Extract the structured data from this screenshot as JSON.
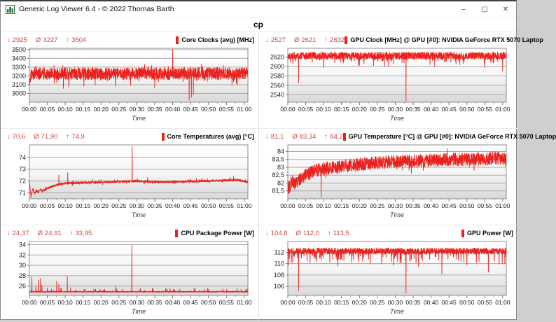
{
  "window": {
    "title": "Generic Log Viewer 6.4 - © 2022 Thomas Barth",
    "controls": {
      "minimize": "–",
      "maximize": "▢",
      "close": "✕"
    }
  },
  "page_title": "cp",
  "symbols": {
    "min": "↓",
    "avg": "Ø",
    "max": "↑"
  },
  "colors": {
    "line": "#e8231f",
    "legend_marker": "#e8231f",
    "stats_text": "#c84a46"
  },
  "time_axis": {
    "label": "Time",
    "ticks": [
      "00:00",
      "00:05",
      "00:10",
      "00:15",
      "00:20",
      "00:25",
      "00:30",
      "00:35",
      "00:40",
      "00:45",
      "00:50",
      "00:55",
      "01:00"
    ]
  },
  "chart_data": [
    {
      "type": "line",
      "title": "Core Clocks (avg) [MHz]",
      "stats": {
        "min": "2925",
        "avg": "3227",
        "max": "3504"
      },
      "ylim": [
        2900,
        3515
      ],
      "y_tick_values": [
        3500,
        3400,
        3300,
        3200,
        3100,
        3000
      ],
      "y_tick_labels": [
        "3500",
        "3400",
        "3300",
        "3200",
        "3100",
        "3000"
      ],
      "series": {
        "seed": 11,
        "profile": [
          [
            0,
            3150
          ],
          [
            0.6,
            3225
          ],
          [
            61,
            3225
          ]
        ],
        "noise_amp": 70,
        "up_prob": 0.05,
        "up_amp": 55,
        "down_prob": 0.03,
        "down_amp": 85,
        "clip_max": 3340,
        "clip_min": 3060,
        "spikes": [
          [
            9.5,
            3058
          ],
          [
            11,
            3075
          ],
          [
            24,
            3082
          ],
          [
            28.3,
            3090
          ],
          [
            35,
            3062
          ],
          [
            40,
            3504
          ],
          [
            44.6,
            2925
          ],
          [
            45.2,
            2955
          ],
          [
            45.8,
            2985
          ],
          [
            58,
            3095
          ]
        ]
      }
    },
    {
      "type": "line",
      "title": "GPU Clock [MHz] @ GPU [#0]: NVIDIA GeForce RTX 5070 Laptop",
      "stats": {
        "min": "2527",
        "avg": "2621",
        "max": "2632"
      },
      "ylim": [
        2524,
        2639
      ],
      "y_tick_values": [
        2620,
        2600,
        2580,
        2560,
        2540
      ],
      "y_tick_labels": [
        "2620",
        "2600",
        "2580",
        "2560",
        "2540"
      ],
      "series": {
        "seed": 22,
        "profile": [
          [
            0,
            2623
          ],
          [
            61,
            2623
          ]
        ],
        "noise_amp": 8,
        "down_prob": 0.07,
        "down_amp": 16,
        "clip_max": 2632,
        "clip_min": 2592,
        "spikes": [
          [
            3,
            2565
          ],
          [
            10,
            2598
          ],
          [
            20,
            2603
          ],
          [
            27,
            2600
          ],
          [
            33,
            2527
          ],
          [
            41,
            2600
          ],
          [
            48,
            2604
          ],
          [
            55,
            2598
          ],
          [
            60,
            2590
          ]
        ]
      }
    },
    {
      "type": "line",
      "title": "Core Temperatures (avg) [°C]",
      "stats": {
        "min": "70,6",
        "avg": "71,90",
        "max": "74,9"
      },
      "ylim": [
        70.5,
        75.05
      ],
      "y_tick_values": [
        74,
        73,
        72,
        71
      ],
      "y_tick_labels": [
        "74",
        "73",
        "72",
        "71"
      ],
      "series": {
        "seed": 33,
        "profile": [
          [
            0,
            72.0
          ],
          [
            0.4,
            70.75
          ],
          [
            1,
            71.3
          ],
          [
            1.5,
            70.95
          ],
          [
            2,
            71.2
          ],
          [
            2.5,
            71.05
          ],
          [
            3,
            71.3
          ],
          [
            3.5,
            71.15
          ],
          [
            4.5,
            71.3
          ],
          [
            6,
            71.5
          ],
          [
            8,
            71.7
          ],
          [
            10,
            71.8
          ],
          [
            14,
            71.85
          ],
          [
            20,
            71.9
          ],
          [
            26,
            71.95
          ],
          [
            30,
            72.0
          ],
          [
            36,
            71.9
          ],
          [
            42,
            71.95
          ],
          [
            48,
            72.0
          ],
          [
            54,
            72.05
          ],
          [
            58,
            72.1
          ],
          [
            61,
            71.9
          ]
        ],
        "noise_amp": 0.09,
        "up_prob": 0.03,
        "up_amp": 0.25,
        "down_prob": 0.02,
        "down_amp": 0.2,
        "spikes": [
          [
            0.45,
            70.6
          ],
          [
            8.2,
            72.5
          ],
          [
            10.7,
            72.7
          ],
          [
            28.7,
            74.9
          ],
          [
            33,
            72.3
          ],
          [
            45,
            72.2
          ],
          [
            57,
            72.4
          ]
        ]
      }
    },
    {
      "type": "line",
      "title": "GPU Temperature [°C] @ GPU [#0]: NVIDIA GeForce RTX 5070 Laptop",
      "stats": {
        "min": "81,1",
        "avg": "83,34",
        "max": "84,2"
      },
      "ylim": [
        81.0,
        84.42
      ],
      "y_tick_values": [
        84,
        83.5,
        83,
        82.5,
        82,
        81.5
      ],
      "y_tick_labels": [
        "84",
        "83,5",
        "83",
        "82,5",
        "82",
        "81,5"
      ],
      "series": {
        "seed": 44,
        "profile": [
          [
            0,
            81.9
          ],
          [
            0.5,
            81.7
          ],
          [
            1,
            82.1
          ],
          [
            2,
            82.0
          ],
          [
            3,
            82.2
          ],
          [
            4,
            82.35
          ],
          [
            5,
            82.5
          ],
          [
            6,
            82.6
          ],
          [
            7,
            82.75
          ],
          [
            8,
            82.8
          ],
          [
            9,
            82.85
          ],
          [
            10,
            82.9
          ],
          [
            12,
            83.0
          ],
          [
            14,
            83.0
          ],
          [
            16,
            83.1
          ],
          [
            18,
            83.1
          ],
          [
            20,
            83.2
          ],
          [
            24,
            83.25
          ],
          [
            28,
            83.35
          ],
          [
            32,
            83.4
          ],
          [
            36,
            83.4
          ],
          [
            40,
            83.45
          ],
          [
            44,
            83.5
          ],
          [
            48,
            83.5
          ],
          [
            52,
            83.5
          ],
          [
            56,
            83.55
          ],
          [
            59,
            83.6
          ],
          [
            61,
            83.5
          ]
        ],
        "noise_amp": 0.42,
        "down_prob": 0.02,
        "down_amp": 0.5,
        "clip_max": 84.2,
        "clip_min": 81.3,
        "spikes": [
          [
            9.3,
            81.1
          ],
          [
            44.5,
            84.2
          ]
        ]
      }
    },
    {
      "type": "line",
      "title": "CPU Package Power [W]",
      "stats": {
        "min": "24,37",
        "avg": "24,91",
        "max": "33,95"
      },
      "ylim": [
        24.2,
        34.6
      ],
      "y_tick_values": [
        34,
        32,
        30,
        28,
        26
      ],
      "y_tick_labels": [
        "34",
        "32",
        "30",
        "28",
        "26"
      ],
      "series": {
        "seed": 55,
        "profile": [
          [
            0,
            24.9
          ],
          [
            61,
            24.9
          ]
        ],
        "noise_amp": 0.1,
        "up_prob": 0.025,
        "up_amp": 0.7,
        "clip_min": 24.37,
        "spikes": [
          [
            0.7,
            27.8
          ],
          [
            1.8,
            25.9
          ],
          [
            2.6,
            27.2
          ],
          [
            3.1,
            27.5
          ],
          [
            3.5,
            26.2
          ],
          [
            5,
            25.6
          ],
          [
            7.6,
            27.0
          ],
          [
            8.2,
            26.4
          ],
          [
            9,
            25.6
          ],
          [
            10.6,
            27.8
          ],
          [
            11.5,
            25.7
          ],
          [
            13,
            25.3
          ],
          [
            15.5,
            25.4
          ],
          [
            18,
            25.4
          ],
          [
            21,
            25.4
          ],
          [
            24,
            26.0
          ],
          [
            26,
            25.4
          ],
          [
            28.6,
            33.95
          ],
          [
            31,
            25.4
          ],
          [
            34.5,
            25.5
          ],
          [
            38,
            25.4
          ],
          [
            42,
            25.4
          ],
          [
            46,
            25.6
          ],
          [
            50,
            25.4
          ],
          [
            54,
            25.4
          ],
          [
            58,
            25.5
          ]
        ]
      }
    },
    {
      "type": "line",
      "title": "GPU Power [W]",
      "stats": {
        "min": "104,8",
        "avg": "112,0",
        "max": "113,5"
      },
      "ylim": [
        104.4,
        113.9
      ],
      "y_tick_values": [
        112,
        110,
        108,
        106
      ],
      "y_tick_labels": [
        "112",
        "110",
        "108",
        "106"
      ],
      "series": {
        "seed": 66,
        "profile": [
          [
            0,
            112.2
          ],
          [
            61,
            112.2
          ]
        ],
        "noise_amp": 0.55,
        "down_prob": 0.09,
        "down_amp": 2.0,
        "clip_max": 113.5,
        "clip_min": 109.7,
        "spikes": [
          [
            1,
            110.2
          ],
          [
            3,
            105.2
          ],
          [
            8,
            110.3
          ],
          [
            14,
            109.6
          ],
          [
            23,
            109.9
          ],
          [
            29.5,
            109.7
          ],
          [
            33,
            104.8
          ],
          [
            36.5,
            109.5
          ],
          [
            43,
            108.2
          ],
          [
            50,
            109.8
          ],
          [
            56,
            108.5
          ],
          [
            59,
            110.0
          ]
        ]
      }
    }
  ]
}
